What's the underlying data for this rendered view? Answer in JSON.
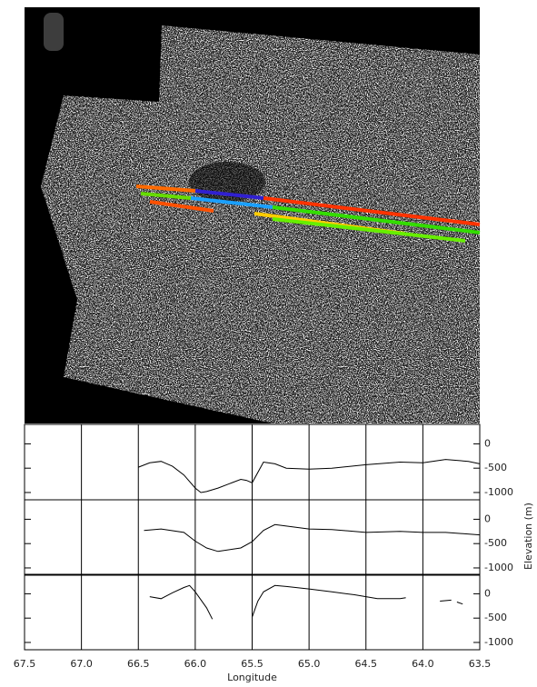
{
  "chart_data": [
    {
      "type": "line",
      "color": "#000000",
      "x": [
        66.5,
        66.4,
        66.3,
        66.2,
        66.1,
        66.0,
        65.95,
        65.9,
        65.8,
        65.7,
        65.6,
        65.55,
        65.5,
        65.4,
        65.3,
        65.2,
        65.0,
        64.8,
        64.5,
        64.2,
        64.0,
        63.8,
        63.6,
        63.5
      ],
      "values": [
        -480,
        -390,
        -360,
        -460,
        -640,
        -910,
        -1000,
        -980,
        -910,
        -820,
        -730,
        -750,
        -800,
        -375,
        -410,
        -500,
        -520,
        -500,
        -430,
        -375,
        -390,
        -320,
        -360,
        -410
      ],
      "xlim": [
        67.5,
        63.5
      ],
      "ylim": [
        -1150,
        400
      ],
      "yticks": [
        0,
        -500,
        -1000
      ]
    },
    {
      "type": "line",
      "color": "#000000",
      "ylabel": "Elevation (m)",
      "x": [
        66.45,
        66.3,
        66.1,
        66.0,
        65.9,
        65.8,
        65.6,
        65.5,
        65.4,
        65.3,
        65.2,
        65.0,
        64.8,
        64.5,
        64.2,
        64.0,
        63.8,
        63.5
      ],
      "values": [
        -230,
        -200,
        -270,
        -450,
        -590,
        -660,
        -590,
        -460,
        -230,
        -110,
        -140,
        -200,
        -210,
        -270,
        -250,
        -270,
        -270,
        -320
      ],
      "xlim": [
        67.5,
        63.5
      ],
      "ylim": [
        -1150,
        400
      ],
      "yticks": [
        0,
        -500,
        -1000
      ]
    },
    {
      "type": "line",
      "color": "#000000",
      "xlabel": "Longitude",
      "x": [
        66.4,
        66.3,
        66.2,
        66.1,
        66.05,
        66.0,
        65.9,
        65.85,
        65.7,
        65.5,
        65.45,
        65.4,
        65.3,
        65.2,
        65.0,
        64.8,
        64.6,
        64.4,
        64.2,
        64.15,
        64.0,
        63.85,
        63.75,
        63.72,
        63.7,
        63.65
      ],
      "values": [
        -60,
        -100,
        20,
        130,
        170,
        40,
        -290,
        -520,
        null,
        -480,
        -150,
        40,
        170,
        150,
        100,
        40,
        -20,
        -100,
        -100,
        -80,
        null,
        -150,
        -130,
        null,
        -170,
        -210
      ],
      "xlim": [
        67.5,
        63.5
      ],
      "ylim": [
        -1150,
        400
      ],
      "yticks": [
        0,
        -500,
        -1000
      ],
      "xticks": [
        67.5,
        {
          "value": 67,
          "label": "67.0"
        },
        66.5,
        {
          "value": 66,
          "label": "66.0"
        },
        65.5,
        {
          "value": 65,
          "label": "65.0"
        },
        64.5,
        {
          "value": 64,
          "label": "64.0"
        },
        63.5
      ]
    }
  ]
}
